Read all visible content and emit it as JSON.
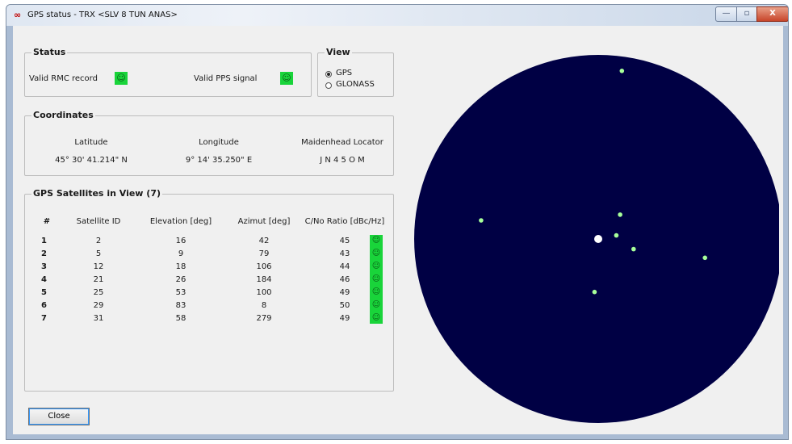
{
  "window": {
    "icon": "∞",
    "title": "GPS status - TRX <SLV 8 TUN ANAS>",
    "controls": {
      "minimize": "—",
      "maximize": "▫",
      "close": "X"
    }
  },
  "status": {
    "label": "Status",
    "rmc_label": "Valid RMC record",
    "pps_label": "Valid PPS signal",
    "indicator": "☺"
  },
  "view": {
    "label": "View",
    "options": [
      {
        "label": "GPS",
        "selected": true
      },
      {
        "label": "GLONASS",
        "selected": false
      }
    ]
  },
  "coordinates": {
    "label": "Coordinates",
    "latitude_label": "Latitude",
    "latitude": "45° 30' 41.214\" N",
    "longitude_label": "Longitude",
    "longitude": "9° 14' 35.250\" E",
    "locator_label": "Maidenhead Locator",
    "locator": "J N 4 5 O M"
  },
  "satellites": {
    "label": "GPS Satellites in View (7)",
    "columns": [
      "#",
      "Satellite ID",
      "Elevation [deg]",
      "Azimut [deg]",
      "C/No Ratio [dBc/Hz]"
    ],
    "rows": [
      {
        "n": "1",
        "id": "2",
        "elevation": "16",
        "azimuth": "42",
        "cno": "45"
      },
      {
        "n": "2",
        "id": "5",
        "elevation": "9",
        "azimuth": "79",
        "cno": "43"
      },
      {
        "n": "3",
        "id": "12",
        "elevation": "18",
        "azimuth": "106",
        "cno": "44"
      },
      {
        "n": "4",
        "id": "21",
        "elevation": "26",
        "azimuth": "184",
        "cno": "46"
      },
      {
        "n": "5",
        "id": "25",
        "elevation": "53",
        "azimuth": "100",
        "cno": "49"
      },
      {
        "n": "6",
        "id": "29",
        "elevation": "83",
        "azimuth": "8",
        "cno": "50"
      },
      {
        "n": "7",
        "id": "31",
        "elevation": "58",
        "azimuth": "279",
        "cno": "49"
      }
    ],
    "snr_indicator": "☺"
  },
  "sky_plot": {
    "background": "#000044",
    "satellite_color": "#a8ff9a",
    "center_color": "#ffffff"
  },
  "close_button": "Close"
}
